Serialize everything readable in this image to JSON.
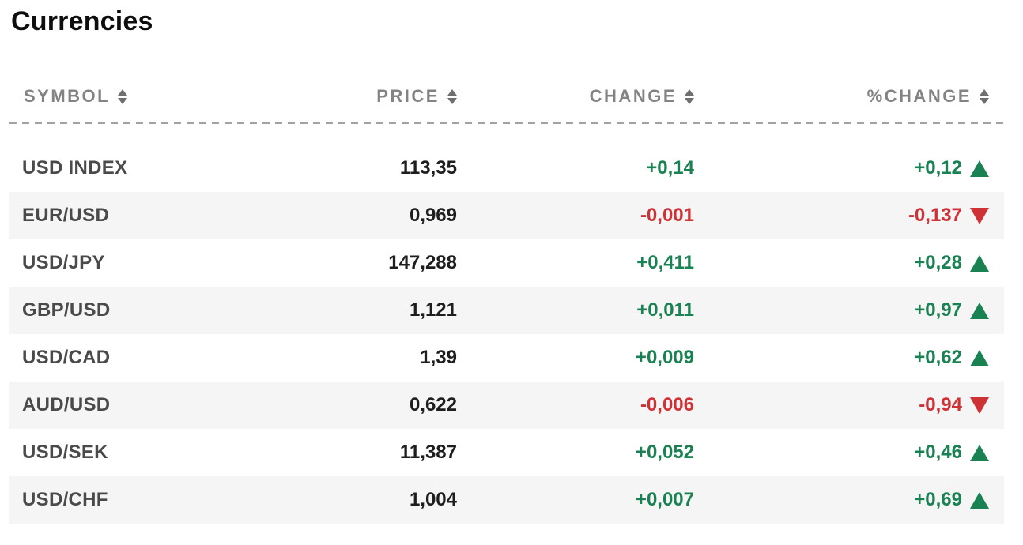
{
  "page_title": "Currencies",
  "colors": {
    "positive": "#1a8152",
    "negative": "#cf3235",
    "header_text": "#838383",
    "symbol_text": "#4a4a4a",
    "price_text": "#1e1e1e",
    "row_stripe": "#f5f5f5",
    "divider": "#a2a2a2"
  },
  "table": {
    "columns": [
      {
        "key": "symbol",
        "label": "SYMBOL",
        "sortable": true,
        "align": "left"
      },
      {
        "key": "price",
        "label": "PRICE",
        "sortable": true,
        "align": "right"
      },
      {
        "key": "change",
        "label": "CHANGE",
        "sortable": true,
        "align": "right"
      },
      {
        "key": "pct_change",
        "label": "%CHANGE",
        "sortable": true,
        "align": "right"
      }
    ],
    "rows": [
      {
        "symbol": "USD INDEX",
        "price": "113,35",
        "change": "+0,14",
        "pct_change": "+0,12",
        "direction": "up"
      },
      {
        "symbol": "EUR/USD",
        "price": "0,969",
        "change": "-0,001",
        "pct_change": "-0,137",
        "direction": "down"
      },
      {
        "symbol": "USD/JPY",
        "price": "147,288",
        "change": "+0,411",
        "pct_change": "+0,28",
        "direction": "up"
      },
      {
        "symbol": "GBP/USD",
        "price": "1,121",
        "change": "+0,011",
        "pct_change": "+0,97",
        "direction": "up"
      },
      {
        "symbol": "USD/CAD",
        "price": "1,39",
        "change": "+0,009",
        "pct_change": "+0,62",
        "direction": "up"
      },
      {
        "symbol": "AUD/USD",
        "price": "0,622",
        "change": "-0,006",
        "pct_change": "-0,94",
        "direction": "down"
      },
      {
        "symbol": "USD/SEK",
        "price": "11,387",
        "change": "+0,052",
        "pct_change": "+0,46",
        "direction": "up"
      },
      {
        "symbol": "USD/CHF",
        "price": "1,004",
        "change": "+0,007",
        "pct_change": "+0,69",
        "direction": "up"
      }
    ]
  }
}
